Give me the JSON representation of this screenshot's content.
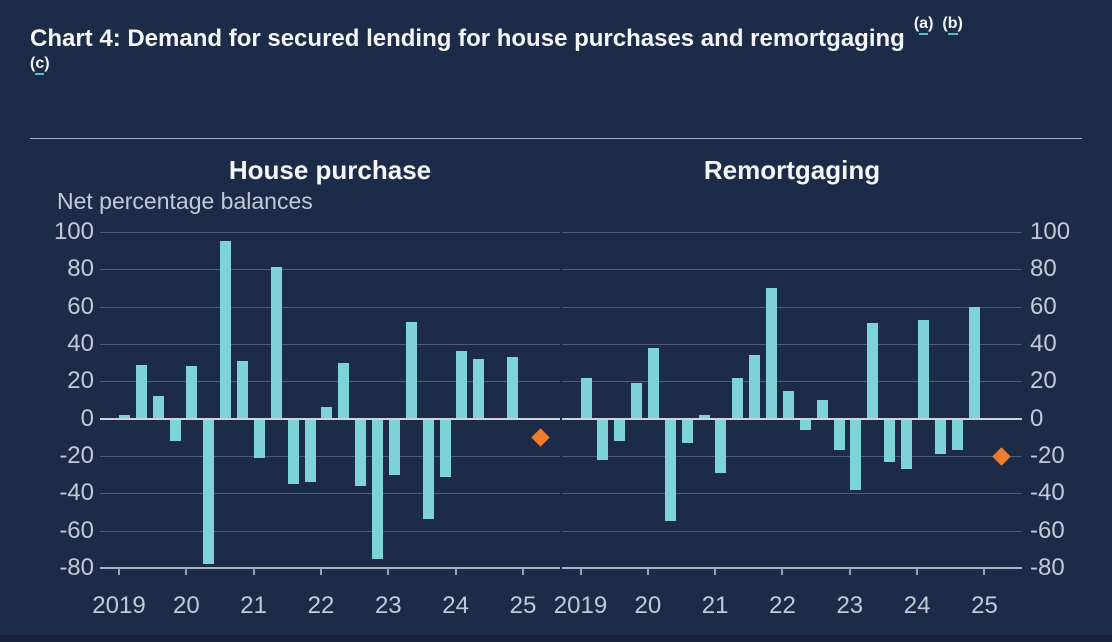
{
  "page": {
    "background_color": "#1c2b48",
    "footer_strip_color": "#18233b"
  },
  "title": {
    "text": "Chart 4: Demand for secured lending for house purchases and remortgaging",
    "footnote_markers_line1": [
      "a",
      "b"
    ],
    "footnote_markers_line2": [
      "c"
    ]
  },
  "chart_data": {
    "type": "bar",
    "title": "Chart 4: Demand for secured lending for house purchases and remortgaging (a) (b) (c)",
    "unit_label": "Net percentage balances",
    "frequency": "quarterly",
    "grid": true,
    "legend": false,
    "ylim": [
      -80,
      100
    ],
    "y_ticks": [
      100,
      80,
      60,
      40,
      20,
      0,
      -20,
      -40,
      -60,
      -80
    ],
    "y_tick_labels": [
      "100",
      "80",
      "60",
      "40",
      "20",
      "0",
      "-20",
      "-40",
      "-60",
      "-80"
    ],
    "x_tick_labels": [
      "2019",
      "20",
      "21",
      "22",
      "23",
      "24",
      "25"
    ],
    "categories": [
      "2019 Q1",
      "2019 Q2",
      "2019 Q3",
      "2019 Q4",
      "2020 Q1",
      "2020 Q2",
      "2020 Q3",
      "2020 Q4",
      "2021 Q1",
      "2021 Q2",
      "2021 Q3",
      "2021 Q4",
      "2022 Q1",
      "2022 Q2",
      "2022 Q3",
      "2022 Q4",
      "2023 Q1",
      "2023 Q2",
      "2023 Q3",
      "2023 Q4",
      "2024 Q1",
      "2024 Q2",
      "2024 Q3",
      "2024 Q4"
    ],
    "panels": [
      {
        "title": "House purchase",
        "series": [
          {
            "name": "Net percentage balance",
            "values": [
              2,
              29,
              12,
              -12,
              28,
              -78,
              95,
              31,
              -21,
              81,
              -35,
              -34,
              6,
              30,
              -36,
              -75,
              -30,
              52,
              -54,
              -31,
              36,
              32,
              0,
              33
            ]
          }
        ],
        "expectation_marker": {
          "period": "2025 Q1",
          "value": -10
        }
      },
      {
        "title": "Remortgaging",
        "series": [
          {
            "name": "Net percentage balance",
            "values": [
              22,
              -22,
              -12,
              19,
              38,
              -55,
              -13,
              2,
              -29,
              22,
              34,
              70,
              15,
              -6,
              10,
              -17,
              -38,
              51,
              -23,
              -27,
              53,
              -19,
              -17,
              60
            ]
          }
        ],
        "expectation_marker": {
          "period": "2025 Q1",
          "value": -20
        }
      }
    ],
    "colors": {
      "bar": "#7dd3d5",
      "expectation_diamond": "#ee7e2e",
      "gridline": "#4f5b76",
      "zero_line": "#ccd3dc",
      "axis_line": "#aab2c0",
      "tick": "#98a1b2",
      "label_text": "#c3cad6",
      "title_text": "#f4f6f9",
      "footnote_underline": "#4fc3c7"
    }
  }
}
